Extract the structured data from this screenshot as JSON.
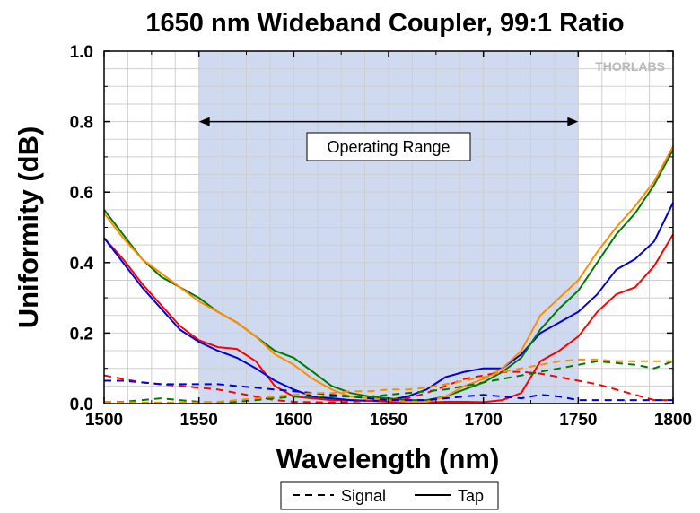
{
  "chart_data": {
    "type": "line",
    "title": "1650 nm Wideband Coupler, 99:1 Ratio",
    "xlabel": "Wavelength (nm)",
    "ylabel": "Uniformity (dB)",
    "xlim": [
      1500,
      1800
    ],
    "ylim": [
      0,
      1.0
    ],
    "x_ticks": [
      "1500",
      "1550",
      "1600",
      "1650",
      "1700",
      "1750",
      "1800"
    ],
    "y_ticks": [
      "0.0",
      "0.2",
      "0.4",
      "0.6",
      "0.8",
      "1.0"
    ],
    "grid": true,
    "shaded_range": [
      1550,
      1750
    ],
    "annotation": {
      "text": "Operating Range",
      "arrow_from": 1550,
      "arrow_to": 1750,
      "arrow_y": 0.8
    },
    "legend": {
      "placement": "bottom",
      "entries": [
        {
          "label": "Signal",
          "style": "dashed"
        },
        {
          "label": "Tap",
          "style": "solid"
        }
      ]
    },
    "logo_text": "THORLABS",
    "series": [
      {
        "kind": "Tap",
        "style": "solid",
        "color": "#ff0000",
        "x": [
          1500,
          1510,
          1520,
          1530,
          1540,
          1550,
          1560,
          1570,
          1580,
          1590,
          1600,
          1610,
          1620,
          1630,
          1640,
          1650,
          1660,
          1670,
          1680,
          1690,
          1700,
          1710,
          1720,
          1730,
          1740,
          1750,
          1760,
          1770,
          1780,
          1790,
          1800
        ],
        "y": [
          0.47,
          0.41,
          0.34,
          0.28,
          0.22,
          0.18,
          0.16,
          0.155,
          0.12,
          0.05,
          0.02,
          0.015,
          0.01,
          0.01,
          0.008,
          0.005,
          0.003,
          0.003,
          0.005,
          0.005,
          0.004,
          0.01,
          0.03,
          0.12,
          0.15,
          0.19,
          0.26,
          0.31,
          0.33,
          0.39,
          0.48
        ]
      },
      {
        "kind": "Tap",
        "style": "solid",
        "color": "#0000dd",
        "x": [
          1500,
          1510,
          1520,
          1530,
          1540,
          1550,
          1560,
          1570,
          1580,
          1590,
          1600,
          1610,
          1620,
          1630,
          1640,
          1650,
          1660,
          1670,
          1680,
          1690,
          1700,
          1710,
          1720,
          1730,
          1740,
          1750,
          1760,
          1770,
          1780,
          1790,
          1800
        ],
        "y": [
          0.47,
          0.4,
          0.33,
          0.27,
          0.21,
          0.175,
          0.15,
          0.13,
          0.1,
          0.065,
          0.04,
          0.02,
          0.015,
          0.01,
          0.008,
          0.01,
          0.02,
          0.04,
          0.075,
          0.09,
          0.1,
          0.1,
          0.14,
          0.2,
          0.23,
          0.26,
          0.31,
          0.38,
          0.41,
          0.46,
          0.57
        ]
      },
      {
        "kind": "Tap",
        "style": "solid",
        "color": "#007a00",
        "x": [
          1500,
          1510,
          1520,
          1530,
          1540,
          1550,
          1560,
          1570,
          1580,
          1590,
          1600,
          1610,
          1620,
          1630,
          1640,
          1650,
          1660,
          1670,
          1680,
          1690,
          1700,
          1710,
          1720,
          1730,
          1740,
          1750,
          1760,
          1770,
          1780,
          1790,
          1800
        ],
        "y": [
          0.55,
          0.48,
          0.41,
          0.36,
          0.33,
          0.3,
          0.26,
          0.23,
          0.19,
          0.15,
          0.13,
          0.09,
          0.05,
          0.03,
          0.02,
          0.015,
          0.01,
          0.01,
          0.02,
          0.04,
          0.06,
          0.09,
          0.13,
          0.21,
          0.27,
          0.32,
          0.4,
          0.48,
          0.54,
          0.62,
          0.72
        ]
      },
      {
        "kind": "Tap",
        "style": "solid",
        "color": "#ff8c00",
        "x": [
          1500,
          1510,
          1520,
          1530,
          1540,
          1550,
          1560,
          1570,
          1580,
          1590,
          1600,
          1610,
          1620,
          1630,
          1640,
          1650,
          1660,
          1670,
          1680,
          1690,
          1700,
          1710,
          1720,
          1730,
          1740,
          1750,
          1760,
          1770,
          1780,
          1790,
          1800
        ],
        "y": [
          0.54,
          0.47,
          0.41,
          0.37,
          0.33,
          0.29,
          0.26,
          0.23,
          0.19,
          0.14,
          0.11,
          0.07,
          0.04,
          0.02,
          0.015,
          0.01,
          0.005,
          0.005,
          0.02,
          0.05,
          0.07,
          0.1,
          0.15,
          0.25,
          0.3,
          0.35,
          0.43,
          0.5,
          0.56,
          0.63,
          0.73
        ]
      },
      {
        "kind": "Signal",
        "style": "dashed",
        "color": "#ff0000",
        "x": [
          1500,
          1510,
          1520,
          1530,
          1540,
          1550,
          1560,
          1570,
          1580,
          1590,
          1600,
          1610,
          1620,
          1630,
          1640,
          1650,
          1660,
          1670,
          1680,
          1690,
          1700,
          1710,
          1720,
          1730,
          1740,
          1750,
          1760,
          1770,
          1780,
          1790,
          1800
        ],
        "y": [
          0.08,
          0.07,
          0.06,
          0.055,
          0.05,
          0.045,
          0.04,
          0.03,
          0.02,
          0.01,
          0.005,
          0.004,
          0.003,
          0.005,
          0.008,
          0.01,
          0.015,
          0.03,
          0.05,
          0.07,
          0.08,
          0.09,
          0.09,
          0.085,
          0.075,
          0.065,
          0.055,
          0.04,
          0.025,
          0.01,
          0.01
        ]
      },
      {
        "kind": "Signal",
        "style": "dashed",
        "color": "#0000dd",
        "x": [
          1500,
          1510,
          1520,
          1530,
          1540,
          1550,
          1560,
          1570,
          1580,
          1590,
          1600,
          1610,
          1620,
          1630,
          1640,
          1650,
          1660,
          1670,
          1680,
          1690,
          1700,
          1710,
          1720,
          1730,
          1740,
          1750,
          1760,
          1770,
          1780,
          1790,
          1800
        ],
        "y": [
          0.065,
          0.065,
          0.06,
          0.055,
          0.055,
          0.055,
          0.055,
          0.05,
          0.045,
          0.04,
          0.035,
          0.03,
          0.025,
          0.02,
          0.015,
          0.01,
          0.01,
          0.01,
          0.015,
          0.02,
          0.025,
          0.02,
          0.015,
          0.025,
          0.02,
          0.01,
          0.01,
          0.01,
          0.01,
          0.01,
          0.01
        ]
      },
      {
        "kind": "Signal",
        "style": "dashed",
        "color": "#007a00",
        "x": [
          1500,
          1510,
          1520,
          1530,
          1540,
          1550,
          1560,
          1570,
          1580,
          1590,
          1600,
          1610,
          1620,
          1630,
          1640,
          1650,
          1660,
          1670,
          1680,
          1690,
          1700,
          1710,
          1720,
          1730,
          1740,
          1750,
          1760,
          1770,
          1780,
          1790,
          1800
        ],
        "y": [
          0.005,
          0.005,
          0.01,
          0.015,
          0.01,
          0.005,
          0.003,
          0.005,
          0.01,
          0.015,
          0.02,
          0.02,
          0.02,
          0.02,
          0.02,
          0.025,
          0.03,
          0.035,
          0.04,
          0.05,
          0.06,
          0.07,
          0.08,
          0.09,
          0.1,
          0.11,
          0.12,
          0.115,
          0.11,
          0.1,
          0.12
        ]
      },
      {
        "kind": "Signal",
        "style": "dashed",
        "color": "#ff8c00",
        "x": [
          1500,
          1510,
          1520,
          1530,
          1540,
          1550,
          1560,
          1570,
          1580,
          1590,
          1600,
          1610,
          1620,
          1630,
          1640,
          1650,
          1660,
          1670,
          1680,
          1690,
          1700,
          1710,
          1720,
          1730,
          1740,
          1750,
          1760,
          1770,
          1780,
          1790,
          1800
        ],
        "y": [
          0.005,
          0.004,
          0.003,
          0.003,
          0.003,
          0.003,
          0.005,
          0.01,
          0.015,
          0.02,
          0.025,
          0.03,
          0.03,
          0.035,
          0.035,
          0.04,
          0.04,
          0.045,
          0.055,
          0.065,
          0.075,
          0.09,
          0.1,
          0.11,
          0.12,
          0.125,
          0.125,
          0.12,
          0.12,
          0.12,
          0.12
        ]
      }
    ]
  }
}
